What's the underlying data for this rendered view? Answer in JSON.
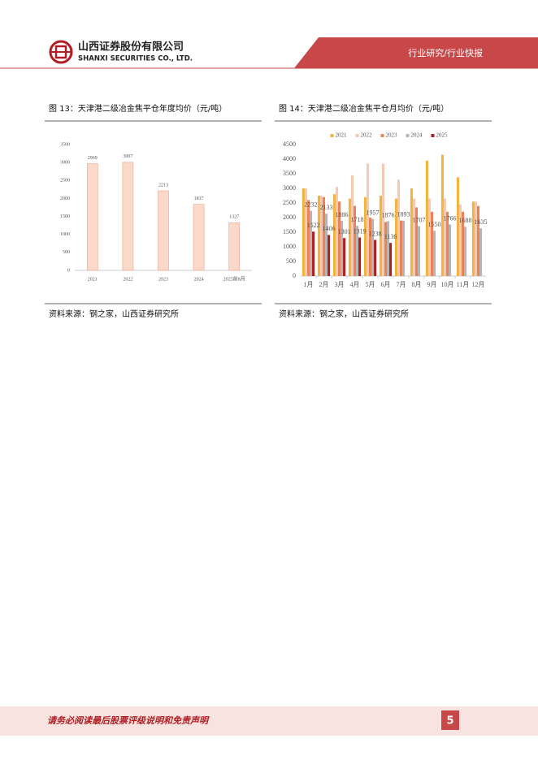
{
  "header": {
    "company_cn": "山西证券股份有限公司",
    "company_en": "SHANXI SECURITIES CO., LTD.",
    "section": "行业研究/行业快报"
  },
  "figures": [
    {
      "title": "图 13：天津港二级冶金焦平仓年度均价（元/吨）",
      "source": "资料来源：钢之家，山西证券研究所"
    },
    {
      "title": "图 14：天津港二级冶金焦平仓月均价（元/吨）",
      "source": "资料来源：钢之家，山西证券研究所"
    }
  ],
  "chart_data": [
    {
      "type": "bar",
      "categories": [
        "2021",
        "2022",
        "2023",
        "2024",
        "2025前8月"
      ],
      "series": [
        {
          "name": null,
          "color": "#fad9ca",
          "values": [
            2969,
            3007,
            2213,
            1837,
            1327
          ],
          "data_labels": true
        }
      ],
      "ylim": [
        0,
        3500
      ],
      "yticks": [
        0,
        500,
        1000,
        1500,
        2000,
        2500,
        3000,
        3500
      ],
      "legend": false
    },
    {
      "type": "bar",
      "categories": [
        "1月",
        "2月",
        "3月",
        "4月",
        "5月",
        "6月",
        "7月",
        "8月",
        "9月",
        "10月",
        "11月",
        "12月"
      ],
      "series": [
        {
          "name": "2021",
          "color": "#f0b43c",
          "values": [
            3000,
            2750,
            2800,
            2650,
            2700,
            2750,
            2650,
            3000,
            3950,
            4150,
            3380,
            2550
          ],
          "data_labels": false
        },
        {
          "name": "2022",
          "color": "#f5c9b4",
          "values": [
            3000,
            2750,
            3050,
            3450,
            3850,
            3850,
            3300,
            2650,
            2650,
            2650,
            2450,
            2550
          ],
          "data_labels": false
        },
        {
          "name": "2023",
          "color": "#e8845a",
          "values": [
            2600,
            2700,
            2550,
            2400,
            2000,
            1850,
            1900,
            2350,
            2200,
            2200,
            2200,
            2400
          ],
          "data_labels": false
        },
        {
          "name": "2024",
          "color": "#b5b5b5",
          "values": [
            2232,
            2133,
            1886,
            1718,
            1957,
            1876,
            1893,
            1707,
            1550,
            1766,
            1688,
            1635
          ],
          "data_labels": true
        },
        {
          "name": "2025",
          "color": "#b01e23",
          "values": [
            1522,
            1406,
            1301,
            1319,
            1238,
            1136,
            null,
            null,
            null,
            null,
            null,
            null
          ],
          "data_labels": true
        }
      ],
      "ylim": [
        0,
        4500
      ],
      "yticks": [
        0,
        500,
        1000,
        1500,
        2000,
        2500,
        3000,
        3500,
        4000,
        4500
      ],
      "legend": "top"
    }
  ],
  "footer": {
    "disclaimer": "请务必阅读最后股票评级说明和免责声明",
    "page": "5"
  }
}
